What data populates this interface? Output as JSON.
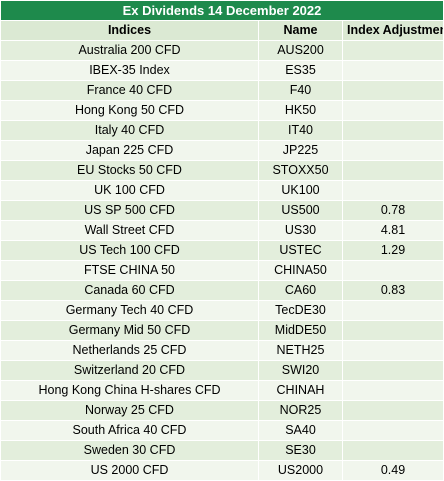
{
  "title": "Ex Dividends 14 December 2022",
  "headers": {
    "indices": "Indices",
    "name": "Name",
    "adjustment": "Index Adjustment Points"
  },
  "rows": [
    {
      "index": "Australia 200 CFD",
      "name": "AUS200",
      "adj": ""
    },
    {
      "index": "IBEX-35 Index",
      "name": "ES35",
      "adj": ""
    },
    {
      "index": "France 40 CFD",
      "name": "F40",
      "adj": ""
    },
    {
      "index": "Hong Kong 50 CFD",
      "name": "HK50",
      "adj": ""
    },
    {
      "index": "Italy 40 CFD",
      "name": "IT40",
      "adj": ""
    },
    {
      "index": "Japan 225 CFD",
      "name": "JP225",
      "adj": ""
    },
    {
      "index": "EU Stocks 50 CFD",
      "name": "STOXX50",
      "adj": ""
    },
    {
      "index": "UK 100 CFD",
      "name": "UK100",
      "adj": ""
    },
    {
      "index": "US SP 500 CFD",
      "name": "US500",
      "adj": "0.78"
    },
    {
      "index": "Wall Street CFD",
      "name": "US30",
      "adj": "4.81"
    },
    {
      "index": "US Tech 100 CFD",
      "name": "USTEC",
      "adj": "1.29"
    },
    {
      "index": "FTSE CHINA 50",
      "name": "CHINA50",
      "adj": ""
    },
    {
      "index": "Canada 60 CFD",
      "name": "CA60",
      "adj": "0.83"
    },
    {
      "index": "Germany Tech 40 CFD",
      "name": "TecDE30",
      "adj": ""
    },
    {
      "index": "Germany Mid 50 CFD",
      "name": "MidDE50",
      "adj": ""
    },
    {
      "index": "Netherlands 25 CFD",
      "name": "NETH25",
      "adj": ""
    },
    {
      "index": "Switzerland 20 CFD",
      "name": "SWI20",
      "adj": ""
    },
    {
      "index": "Hong Kong China H-shares CFD",
      "name": "CHINAH",
      "adj": ""
    },
    {
      "index": "Norway 25 CFD",
      "name": "NOR25",
      "adj": ""
    },
    {
      "index": "South Africa 40 CFD",
      "name": "SA40",
      "adj": ""
    },
    {
      "index": "Sweden 30 CFD",
      "name": "SE30",
      "adj": ""
    },
    {
      "index": "US 2000 CFD",
      "name": "US2000",
      "adj": "0.49"
    }
  ]
}
